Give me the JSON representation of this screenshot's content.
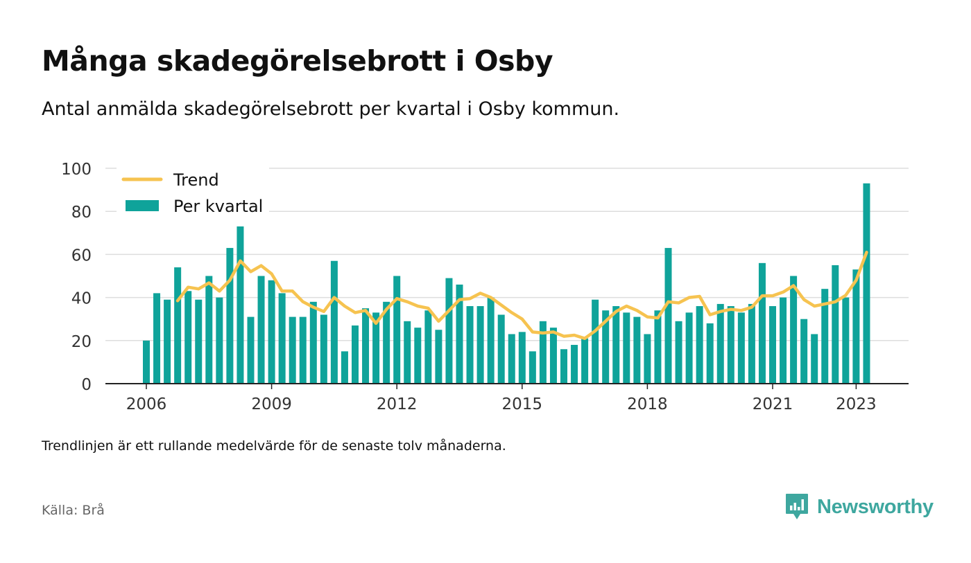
{
  "title": "Många skadegörelsebrott i Osby",
  "subtitle": "Antal anmälda skadegörelsebrott per kvartal i Osby kommun.",
  "note": "Trendlinjen är ett rullande medelvärde för de senaste tolv månaderna.",
  "source": "Källa: Brå",
  "brand": {
    "name": "Newsworthy",
    "icon": "bar-chart-speech-bubble-icon",
    "color": "#3ea79f"
  },
  "chart_data": {
    "type": "bar",
    "xlabel": "",
    "ylabel": "",
    "ylim": [
      0,
      100
    ],
    "yticks": [
      0,
      20,
      40,
      60,
      80,
      100
    ],
    "xticks": [
      "2006",
      "2009",
      "2012",
      "2015",
      "2018",
      "2021",
      "2023"
    ],
    "grid": true,
    "legend_position": "top-left",
    "x_start": "2006 Q1",
    "series": [
      {
        "name": "Per kvartal",
        "type": "bar",
        "color": "#0fa39a",
        "values": [
          20,
          42,
          39,
          54,
          43,
          39,
          50,
          40,
          63,
          73,
          31,
          50,
          48,
          42,
          31,
          31,
          38,
          32,
          57,
          15,
          27,
          35,
          33,
          38,
          50,
          29,
          26,
          34,
          25,
          49,
          46,
          36,
          36,
          40,
          32,
          23,
          24,
          15,
          29,
          26,
          16,
          18,
          21,
          39,
          34,
          36,
          33,
          31,
          23,
          34,
          63,
          29,
          33,
          36,
          28,
          37,
          36,
          33,
          37,
          56,
          36,
          40,
          50,
          30,
          23,
          44,
          55,
          40,
          53,
          93
        ]
      },
      {
        "name": "Trend",
        "type": "line",
        "color": "#f6c350",
        "values": [
          null,
          null,
          null,
          38.5,
          44.8,
          44.0,
          46.8,
          43.0,
          48.0,
          57.0,
          52.0,
          54.8,
          51.0,
          43.0,
          43.0,
          38.0,
          35.5,
          33.5,
          40.0,
          36.0,
          33.0,
          34.0,
          28.0,
          34.5,
          39.5,
          38.0,
          36.0,
          35.0,
          29.0,
          34.0,
          39.0,
          39.5,
          42.0,
          40.0,
          36.5,
          33.0,
          30.0,
          24.0,
          23.5,
          24.0,
          22.0,
          22.5,
          21.0,
          24.5,
          29.0,
          33.5,
          36.0,
          34.0,
          31.0,
          30.5,
          38.0,
          37.5,
          40.0,
          40.5,
          32.0,
          33.5,
          34.5,
          34.0,
          35.5,
          40.8,
          40.8,
          42.5,
          45.5,
          39.0,
          36.0,
          37.0,
          38.0,
          41.0,
          48.0,
          61.0
        ]
      }
    ]
  }
}
